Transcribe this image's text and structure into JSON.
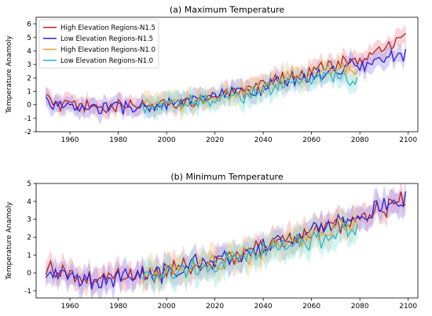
{
  "chart_data": [
    {
      "type": "line",
      "title": "(a) Maximum Temperature",
      "xlabel": "",
      "ylabel": "Temperature Anamoly",
      "xlim": [
        1946,
        2104
      ],
      "ylim": [
        -2,
        6.5
      ],
      "xticks": [
        1960,
        1980,
        2000,
        2020,
        2040,
        2060,
        2080,
        2100
      ],
      "yticks": [
        -2,
        -1,
        0,
        1,
        2,
        3,
        4,
        5,
        6
      ],
      "legend_position": "top-left",
      "series": [
        {
          "name": "High Elevation Regions-N1.5",
          "color": "#b22222",
          "band_color": "#f2a0a8",
          "x_start": 1950,
          "x_end": 2099,
          "anchors": [
            [
              1950,
              0.5
            ],
            [
              1955,
              0.0
            ],
            [
              1960,
              -0.1
            ],
            [
              1965,
              -0.2
            ],
            [
              1970,
              -0.1
            ],
            [
              1975,
              -0.2
            ],
            [
              1980,
              -0.1
            ],
            [
              1985,
              -0.2
            ],
            [
              1990,
              0.0
            ],
            [
              1995,
              -0.1
            ],
            [
              2000,
              0.1
            ],
            [
              2005,
              0.1
            ],
            [
              2010,
              0.4
            ],
            [
              2015,
              0.5
            ],
            [
              2020,
              0.6
            ],
            [
              2025,
              0.8
            ],
            [
              2030,
              0.9
            ],
            [
              2035,
              1.0
            ],
            [
              2040,
              1.5
            ],
            [
              2045,
              1.8
            ],
            [
              2050,
              2.1
            ],
            [
              2055,
              2.3
            ],
            [
              2060,
              2.6
            ],
            [
              2065,
              2.9
            ],
            [
              2070,
              3.0
            ],
            [
              2075,
              3.2
            ],
            [
              2080,
              3.4
            ],
            [
              2085,
              3.7
            ],
            [
              2090,
              4.1
            ],
            [
              2095,
              4.6
            ],
            [
              2099,
              4.9
            ]
          ]
        },
        {
          "name": "Low Elevation Regions-N1.5",
          "color": "#2a1fd6",
          "band_color": "#a79bf0",
          "x_start": 1950,
          "x_end": 2099,
          "anchors": [
            [
              1950,
              0.4
            ],
            [
              1955,
              -0.1
            ],
            [
              1960,
              -0.2
            ],
            [
              1965,
              -0.3
            ],
            [
              1970,
              -0.2
            ],
            [
              1975,
              -0.2
            ],
            [
              1980,
              -0.2
            ],
            [
              1985,
              -0.2
            ],
            [
              1990,
              -0.1
            ],
            [
              1995,
              -0.1
            ],
            [
              2000,
              0.0
            ],
            [
              2005,
              0.1
            ],
            [
              2010,
              0.3
            ],
            [
              2015,
              0.5
            ],
            [
              2020,
              0.5
            ],
            [
              2025,
              0.7
            ],
            [
              2030,
              0.8
            ],
            [
              2035,
              0.9
            ],
            [
              2040,
              1.3
            ],
            [
              2045,
              1.6
            ],
            [
              2050,
              1.8
            ],
            [
              2055,
              2.0
            ],
            [
              2060,
              2.2
            ],
            [
              2065,
              2.4
            ],
            [
              2070,
              2.6
            ],
            [
              2075,
              2.8
            ],
            [
              2080,
              2.9
            ],
            [
              2085,
              3.1
            ],
            [
              2090,
              3.4
            ],
            [
              2095,
              3.7
            ],
            [
              2099,
              3.9
            ]
          ]
        },
        {
          "name": "High Elevation Regions-N1.0",
          "color": "#e0a030",
          "band_color": "#f5d08a",
          "x_start": 1990,
          "x_end": 2079,
          "anchors": [
            [
              1990,
              0.0
            ],
            [
              1995,
              -0.1
            ],
            [
              2000,
              0.0
            ],
            [
              2005,
              0.1
            ],
            [
              2010,
              0.3
            ],
            [
              2015,
              0.5
            ],
            [
              2020,
              0.6
            ],
            [
              2025,
              0.7
            ],
            [
              2030,
              0.8
            ],
            [
              2035,
              0.9
            ],
            [
              2040,
              1.3
            ],
            [
              2045,
              1.6
            ],
            [
              2050,
              1.9
            ],
            [
              2055,
              2.1
            ],
            [
              2060,
              2.3
            ],
            [
              2065,
              2.5
            ],
            [
              2070,
              2.6
            ],
            [
              2075,
              2.7
            ],
            [
              2079,
              2.8
            ]
          ]
        },
        {
          "name": "Low Elevation Regions-N1.0",
          "color": "#2ab5c8",
          "band_color": "#9ee6e6",
          "x_start": 1990,
          "x_end": 2079,
          "anchors": [
            [
              1990,
              -0.1
            ],
            [
              1995,
              -0.2
            ],
            [
              2000,
              -0.1
            ],
            [
              2005,
              0.0
            ],
            [
              2010,
              0.2
            ],
            [
              2015,
              0.4
            ],
            [
              2020,
              0.5
            ],
            [
              2025,
              0.6
            ],
            [
              2030,
              0.7
            ],
            [
              2035,
              0.8
            ],
            [
              2040,
              1.1
            ],
            [
              2045,
              1.4
            ],
            [
              2050,
              1.6
            ],
            [
              2055,
              1.8
            ],
            [
              2060,
              1.9
            ],
            [
              2065,
              2.0
            ],
            [
              2070,
              2.0
            ],
            [
              2075,
              1.9
            ],
            [
              2079,
              1.9
            ]
          ]
        }
      ]
    },
    {
      "type": "line",
      "title": "(b) Minimum Temperature",
      "xlabel": "",
      "ylabel": "Temperature Anamoly",
      "xlim": [
        1946,
        2104
      ],
      "ylim": [
        -1.4,
        5
      ],
      "xticks": [
        1960,
        1980,
        2000,
        2020,
        2040,
        2060,
        2080,
        2100
      ],
      "yticks": [
        -1,
        0,
        1,
        2,
        3,
        4,
        5
      ],
      "legend_position": "none",
      "series": [
        {
          "name": "High Elevation Regions-N1.5",
          "color": "#b22222",
          "band_color": "#f2a0a8",
          "x_start": 1950,
          "x_end": 2099,
          "anchors": [
            [
              1950,
              0.3
            ],
            [
              1955,
              0.1
            ],
            [
              1960,
              -0.2
            ],
            [
              1965,
              -0.5
            ],
            [
              1970,
              -0.3
            ],
            [
              1975,
              -0.2
            ],
            [
              1980,
              -0.1
            ],
            [
              1985,
              -0.1
            ],
            [
              1990,
              -0.1
            ],
            [
              1995,
              0.0
            ],
            [
              2000,
              0.0
            ],
            [
              2005,
              0.3
            ],
            [
              2010,
              0.5
            ],
            [
              2015,
              0.6
            ],
            [
              2020,
              0.7
            ],
            [
              2025,
              0.8
            ],
            [
              2030,
              1.0
            ],
            [
              2035,
              1.2
            ],
            [
              2040,
              1.5
            ],
            [
              2045,
              1.7
            ],
            [
              2050,
              1.9
            ],
            [
              2055,
              2.1
            ],
            [
              2060,
              2.3
            ],
            [
              2065,
              2.5
            ],
            [
              2070,
              2.7
            ],
            [
              2075,
              2.9
            ],
            [
              2080,
              3.1
            ],
            [
              2085,
              3.4
            ],
            [
              2090,
              3.7
            ],
            [
              2095,
              3.9
            ],
            [
              2099,
              4.0
            ]
          ]
        },
        {
          "name": "Low Elevation Regions-N1.5",
          "color": "#2a1fd6",
          "band_color": "#a79bf0",
          "x_start": 1950,
          "x_end": 2099,
          "anchors": [
            [
              1950,
              0.2
            ],
            [
              1955,
              0.0
            ],
            [
              1960,
              -0.3
            ],
            [
              1965,
              -0.6
            ],
            [
              1970,
              -0.4
            ],
            [
              1975,
              -0.3
            ],
            [
              1980,
              -0.1
            ],
            [
              1985,
              -0.1
            ],
            [
              1990,
              -0.1
            ],
            [
              1995,
              -0.1
            ],
            [
              2000,
              0.0
            ],
            [
              2005,
              0.3
            ],
            [
              2010,
              0.5
            ],
            [
              2015,
              0.6
            ],
            [
              2020,
              0.7
            ],
            [
              2025,
              0.8
            ],
            [
              2030,
              1.0
            ],
            [
              2035,
              1.2
            ],
            [
              2040,
              1.5
            ],
            [
              2045,
              1.7
            ],
            [
              2050,
              1.9
            ],
            [
              2055,
              2.1
            ],
            [
              2060,
              2.3
            ],
            [
              2065,
              2.5
            ],
            [
              2070,
              2.7
            ],
            [
              2075,
              2.9
            ],
            [
              2080,
              3.2
            ],
            [
              2085,
              3.5
            ],
            [
              2090,
              3.8
            ],
            [
              2095,
              3.9
            ],
            [
              2099,
              4.0
            ]
          ]
        },
        {
          "name": "High Elevation Regions-N1.0",
          "color": "#e0a030",
          "band_color": "#f5d08a",
          "x_start": 1990,
          "x_end": 2079,
          "anchors": [
            [
              1990,
              -0.1
            ],
            [
              1995,
              0.0
            ],
            [
              2000,
              0.0
            ],
            [
              2005,
              0.2
            ],
            [
              2010,
              0.4
            ],
            [
              2015,
              0.5
            ],
            [
              2020,
              0.6
            ],
            [
              2025,
              0.7
            ],
            [
              2030,
              0.8
            ],
            [
              2035,
              1.0
            ],
            [
              2040,
              1.3
            ],
            [
              2045,
              1.5
            ],
            [
              2050,
              1.7
            ],
            [
              2055,
              1.8
            ],
            [
              2060,
              2.0
            ],
            [
              2065,
              2.2
            ],
            [
              2070,
              2.4
            ],
            [
              2075,
              2.6
            ],
            [
              2079,
              2.8
            ]
          ]
        },
        {
          "name": "Low Elevation Regions-N1.0",
          "color": "#2ab5c8",
          "band_color": "#9ee6e6",
          "x_start": 1990,
          "x_end": 2079,
          "anchors": [
            [
              1990,
              -0.2
            ],
            [
              1995,
              -0.1
            ],
            [
              2000,
              -0.1
            ],
            [
              2005,
              0.1
            ],
            [
              2010,
              0.3
            ],
            [
              2015,
              0.4
            ],
            [
              2020,
              0.5
            ],
            [
              2025,
              0.6
            ],
            [
              2030,
              0.7
            ],
            [
              2035,
              0.9
            ],
            [
              2040,
              1.2
            ],
            [
              2045,
              1.4
            ],
            [
              2050,
              1.5
            ],
            [
              2055,
              1.7
            ],
            [
              2060,
              1.8
            ],
            [
              2065,
              2.0
            ],
            [
              2070,
              2.2
            ],
            [
              2075,
              2.4
            ],
            [
              2079,
              2.6
            ]
          ]
        }
      ]
    }
  ]
}
